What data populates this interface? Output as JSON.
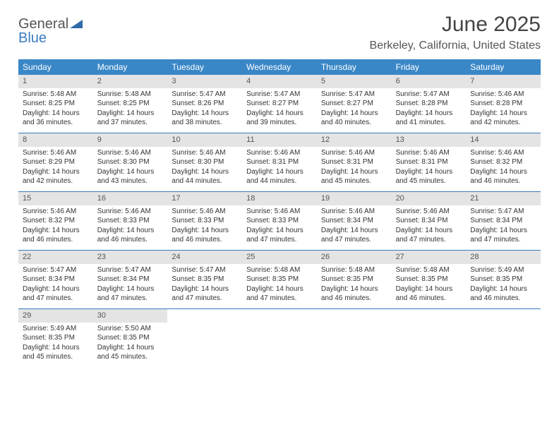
{
  "logo": {
    "word1": "General",
    "word2": "Blue",
    "color_gray": "#555555",
    "color_blue": "#3a7bbf"
  },
  "header": {
    "month_title": "June 2025",
    "location": "Berkeley, California, United States"
  },
  "theme": {
    "header_bar_color": "#3a87c7",
    "header_text_color": "#ffffff",
    "daynum_bg": "#e4e4e4",
    "week_border": "#3a7bbf",
    "body_text": "#333333",
    "cell_fontsize": 10,
    "dow_fontsize": 12
  },
  "days_of_week": [
    "Sunday",
    "Monday",
    "Tuesday",
    "Wednesday",
    "Thursday",
    "Friday",
    "Saturday"
  ],
  "weeks": [
    [
      {
        "n": "1",
        "sr": "Sunrise: 5:48 AM",
        "ss": "Sunset: 8:25 PM",
        "dl": "Daylight: 14 hours and 36 minutes."
      },
      {
        "n": "2",
        "sr": "Sunrise: 5:48 AM",
        "ss": "Sunset: 8:25 PM",
        "dl": "Daylight: 14 hours and 37 minutes."
      },
      {
        "n": "3",
        "sr": "Sunrise: 5:47 AM",
        "ss": "Sunset: 8:26 PM",
        "dl": "Daylight: 14 hours and 38 minutes."
      },
      {
        "n": "4",
        "sr": "Sunrise: 5:47 AM",
        "ss": "Sunset: 8:27 PM",
        "dl": "Daylight: 14 hours and 39 minutes."
      },
      {
        "n": "5",
        "sr": "Sunrise: 5:47 AM",
        "ss": "Sunset: 8:27 PM",
        "dl": "Daylight: 14 hours and 40 minutes."
      },
      {
        "n": "6",
        "sr": "Sunrise: 5:47 AM",
        "ss": "Sunset: 8:28 PM",
        "dl": "Daylight: 14 hours and 41 minutes."
      },
      {
        "n": "7",
        "sr": "Sunrise: 5:46 AM",
        "ss": "Sunset: 8:28 PM",
        "dl": "Daylight: 14 hours and 42 minutes."
      }
    ],
    [
      {
        "n": "8",
        "sr": "Sunrise: 5:46 AM",
        "ss": "Sunset: 8:29 PM",
        "dl": "Daylight: 14 hours and 42 minutes."
      },
      {
        "n": "9",
        "sr": "Sunrise: 5:46 AM",
        "ss": "Sunset: 8:30 PM",
        "dl": "Daylight: 14 hours and 43 minutes."
      },
      {
        "n": "10",
        "sr": "Sunrise: 5:46 AM",
        "ss": "Sunset: 8:30 PM",
        "dl": "Daylight: 14 hours and 44 minutes."
      },
      {
        "n": "11",
        "sr": "Sunrise: 5:46 AM",
        "ss": "Sunset: 8:31 PM",
        "dl": "Daylight: 14 hours and 44 minutes."
      },
      {
        "n": "12",
        "sr": "Sunrise: 5:46 AM",
        "ss": "Sunset: 8:31 PM",
        "dl": "Daylight: 14 hours and 45 minutes."
      },
      {
        "n": "13",
        "sr": "Sunrise: 5:46 AM",
        "ss": "Sunset: 8:31 PM",
        "dl": "Daylight: 14 hours and 45 minutes."
      },
      {
        "n": "14",
        "sr": "Sunrise: 5:46 AM",
        "ss": "Sunset: 8:32 PM",
        "dl": "Daylight: 14 hours and 46 minutes."
      }
    ],
    [
      {
        "n": "15",
        "sr": "Sunrise: 5:46 AM",
        "ss": "Sunset: 8:32 PM",
        "dl": "Daylight: 14 hours and 46 minutes."
      },
      {
        "n": "16",
        "sr": "Sunrise: 5:46 AM",
        "ss": "Sunset: 8:33 PM",
        "dl": "Daylight: 14 hours and 46 minutes."
      },
      {
        "n": "17",
        "sr": "Sunrise: 5:46 AM",
        "ss": "Sunset: 8:33 PM",
        "dl": "Daylight: 14 hours and 46 minutes."
      },
      {
        "n": "18",
        "sr": "Sunrise: 5:46 AM",
        "ss": "Sunset: 8:33 PM",
        "dl": "Daylight: 14 hours and 47 minutes."
      },
      {
        "n": "19",
        "sr": "Sunrise: 5:46 AM",
        "ss": "Sunset: 8:34 PM",
        "dl": "Daylight: 14 hours and 47 minutes."
      },
      {
        "n": "20",
        "sr": "Sunrise: 5:46 AM",
        "ss": "Sunset: 8:34 PM",
        "dl": "Daylight: 14 hours and 47 minutes."
      },
      {
        "n": "21",
        "sr": "Sunrise: 5:47 AM",
        "ss": "Sunset: 8:34 PM",
        "dl": "Daylight: 14 hours and 47 minutes."
      }
    ],
    [
      {
        "n": "22",
        "sr": "Sunrise: 5:47 AM",
        "ss": "Sunset: 8:34 PM",
        "dl": "Daylight: 14 hours and 47 minutes."
      },
      {
        "n": "23",
        "sr": "Sunrise: 5:47 AM",
        "ss": "Sunset: 8:34 PM",
        "dl": "Daylight: 14 hours and 47 minutes."
      },
      {
        "n": "24",
        "sr": "Sunrise: 5:47 AM",
        "ss": "Sunset: 8:35 PM",
        "dl": "Daylight: 14 hours and 47 minutes."
      },
      {
        "n": "25",
        "sr": "Sunrise: 5:48 AM",
        "ss": "Sunset: 8:35 PM",
        "dl": "Daylight: 14 hours and 47 minutes."
      },
      {
        "n": "26",
        "sr": "Sunrise: 5:48 AM",
        "ss": "Sunset: 8:35 PM",
        "dl": "Daylight: 14 hours and 46 minutes."
      },
      {
        "n": "27",
        "sr": "Sunrise: 5:48 AM",
        "ss": "Sunset: 8:35 PM",
        "dl": "Daylight: 14 hours and 46 minutes."
      },
      {
        "n": "28",
        "sr": "Sunrise: 5:49 AM",
        "ss": "Sunset: 8:35 PM",
        "dl": "Daylight: 14 hours and 46 minutes."
      }
    ],
    [
      {
        "n": "29",
        "sr": "Sunrise: 5:49 AM",
        "ss": "Sunset: 8:35 PM",
        "dl": "Daylight: 14 hours and 45 minutes."
      },
      {
        "n": "30",
        "sr": "Sunrise: 5:50 AM",
        "ss": "Sunset: 8:35 PM",
        "dl": "Daylight: 14 hours and 45 minutes."
      },
      {
        "empty": true
      },
      {
        "empty": true
      },
      {
        "empty": true
      },
      {
        "empty": true
      },
      {
        "empty": true
      }
    ]
  ]
}
